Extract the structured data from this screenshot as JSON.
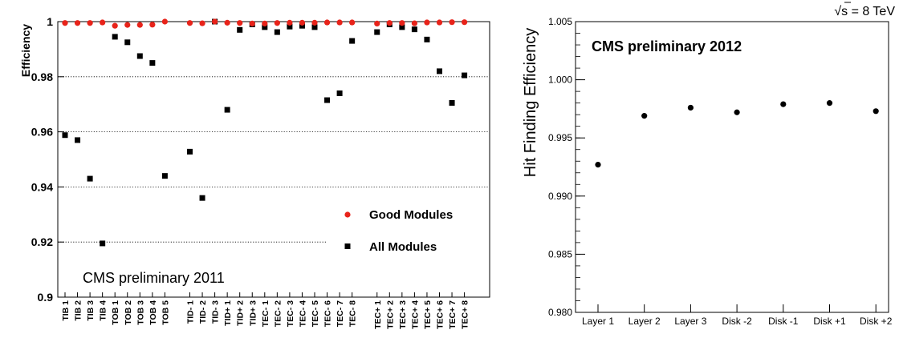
{
  "chart_data": [
    {
      "type": "scatter",
      "title": "",
      "ylabel": "Efficiency",
      "xlabel": "",
      "ylim": [
        0.9,
        1.0
      ],
      "yticks": [
        0.9,
        0.92,
        0.94,
        0.96,
        0.98,
        1.0
      ],
      "ytick_labels": [
        "0.9",
        "0.92",
        "0.94",
        "0.96",
        "0.98",
        "1"
      ],
      "grid": "dotted horizontal at 0.92, 0.94, 0.96, 0.98",
      "annotation": "CMS preliminary 2011",
      "legend_position": "bottom-right",
      "categories": [
        "TIB 1",
        "TIB 2",
        "TIB 3",
        "TIB 4",
        "TOB 1",
        "TOB 2",
        "TOB 3",
        "TOB 4",
        "TOB 5",
        "TID- 1",
        "TID- 2",
        "TID- 3",
        "TID+ 1",
        "TID+ 2",
        "TID+ 3",
        "TEC- 1",
        "TEC- 2",
        "TEC- 3",
        "TEC- 4",
        "TEC- 5",
        "TEC- 6",
        "TEC- 7",
        "TEC- 8",
        "TEC+ 1",
        "TEC+ 2",
        "TEC+ 3",
        "TEC+ 4",
        "TEC+ 5",
        "TEC+ 6",
        "TEC+ 7",
        "TEC+ 8"
      ],
      "x_positions": [
        1,
        2,
        3,
        4,
        5,
        6,
        7,
        8,
        9,
        11,
        12,
        13,
        14,
        15,
        16,
        17,
        18,
        19,
        20,
        21,
        22,
        23,
        24,
        26,
        27,
        28,
        29,
        30,
        31,
        32,
        33
      ],
      "series": [
        {
          "name": "Good Modules",
          "marker": "circle",
          "color": "#e8231a",
          "values": [
            0.9995,
            0.9995,
            0.9995,
            0.9997,
            0.9985,
            0.9988,
            0.9988,
            0.9989,
            1.0,
            0.9995,
            0.9994,
            1.0,
            0.9996,
            0.9995,
            0.9993,
            0.9993,
            0.9995,
            0.9996,
            0.9996,
            0.9996,
            0.9997,
            0.9997,
            0.9997,
            0.9993,
            0.9995,
            0.9995,
            0.9994,
            0.9997,
            0.9997,
            0.9998,
            0.9998
          ]
        },
        {
          "name": "All Modules",
          "marker": "square",
          "color": "#000000",
          "values": [
            0.9588,
            0.957,
            0.943,
            0.9195,
            0.9945,
            0.9925,
            0.9875,
            0.985,
            0.944,
            0.9528,
            0.936,
            1.0,
            0.968,
            0.997,
            0.999,
            0.998,
            0.9962,
            0.9982,
            0.9985,
            0.998,
            0.9715,
            0.974,
            0.993,
            0.9962,
            0.999,
            0.998,
            0.9972,
            0.9935,
            0.982,
            0.9705,
            0.9805
          ]
        }
      ]
    },
    {
      "type": "scatter",
      "title": "",
      "ylabel": "Hit Finding Efficiency",
      "xlabel": "",
      "ylim": [
        0.98,
        1.005
      ],
      "yticks": [
        0.98,
        0.985,
        0.99,
        0.995,
        1.0,
        1.005
      ],
      "ytick_labels": [
        "0.980",
        "0.985",
        "0.990",
        "0.995",
        "1.000",
        "1.005"
      ],
      "grid": false,
      "annotation": "CMS preliminary 2012",
      "energy_label_radical": "√",
      "energy_label": "s = 8 TeV",
      "categories": [
        "Layer 1",
        "Layer 2",
        "Layer 3",
        "Disk -2",
        "Disk -1",
        "Disk +1",
        "Disk +2"
      ],
      "series": [
        {
          "marker": "circle",
          "color": "#000000",
          "values": [
            0.9927,
            0.9969,
            0.9976,
            0.9972,
            0.9979,
            0.998,
            0.9973
          ]
        }
      ]
    }
  ]
}
